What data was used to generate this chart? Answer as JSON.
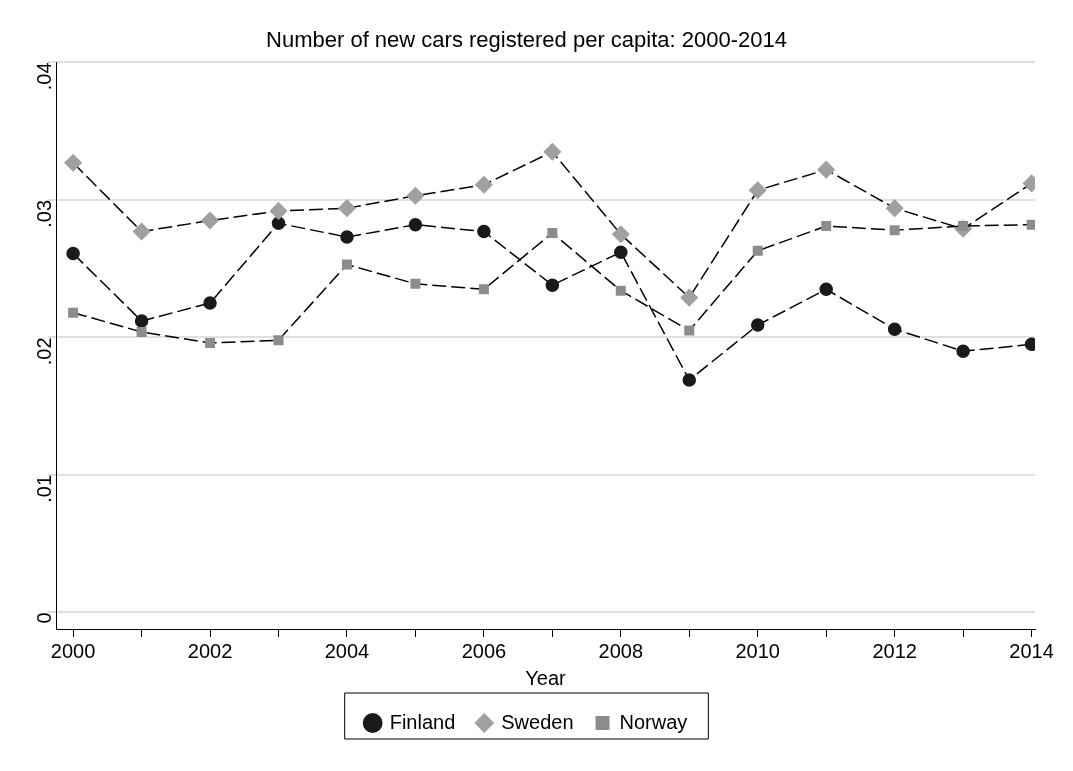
{
  "chart_data": {
    "type": "line",
    "title": "Number of new cars registered per capita: 2000-2014",
    "xlabel": "Year",
    "x": [
      2000,
      2001,
      2002,
      2003,
      2004,
      2005,
      2006,
      2007,
      2008,
      2009,
      2010,
      2011,
      2012,
      2013,
      2014
    ],
    "series": [
      {
        "name": "Finland",
        "color": "#1a1a1a",
        "marker": "circle",
        "values": [
          0.0261,
          0.0212,
          0.0225,
          0.0283,
          0.0273,
          0.0282,
          0.0277,
          0.0238,
          0.0262,
          0.0169,
          0.0209,
          0.0235,
          0.0206,
          0.019,
          0.0195
        ]
      },
      {
        "name": "Sweden",
        "color": "#a0a0a0",
        "marker": "diamond",
        "values": [
          0.0327,
          0.0277,
          0.0285,
          0.0292,
          0.0294,
          0.0303,
          0.0311,
          0.0335,
          0.0275,
          0.0229,
          0.0307,
          0.0322,
          0.0294,
          0.0279,
          0.0312
        ]
      },
      {
        "name": "Norway",
        "color": "#8c8c8c",
        "marker": "square",
        "values": [
          0.0218,
          0.0204,
          0.0196,
          0.0198,
          0.0253,
          0.0239,
          0.0235,
          0.0276,
          0.0234,
          0.0205,
          0.0263,
          0.0281,
          0.0278,
          0.0281,
          0.0282
        ]
      }
    ],
    "xlim": [
      1999.75,
      2014.05
    ],
    "xticks": [
      2000,
      {
        "value": 2001,
        "label": null
      },
      2002,
      {
        "value": 2003,
        "label": null
      },
      2004,
      {
        "value": 2005,
        "label": null
      },
      2006,
      {
        "value": 2007,
        "label": null
      },
      2008,
      {
        "value": 2009,
        "label": null
      },
      2010,
      {
        "value": 2011,
        "label": null
      },
      2012,
      {
        "value": 2013,
        "label": null
      },
      2014
    ],
    "ylim": [
      -0.0012,
      0.04
    ],
    "yticks": [
      0,
      {
        "value": 0.01,
        "label": ".01"
      },
      {
        "value": 0.02,
        "label": ".02"
      },
      {
        "value": 0.03,
        "label": ".03"
      },
      {
        "value": 0.04,
        "label": ".04"
      }
    ],
    "grid": "y",
    "legend": "bottom",
    "line_style": "dashed"
  }
}
